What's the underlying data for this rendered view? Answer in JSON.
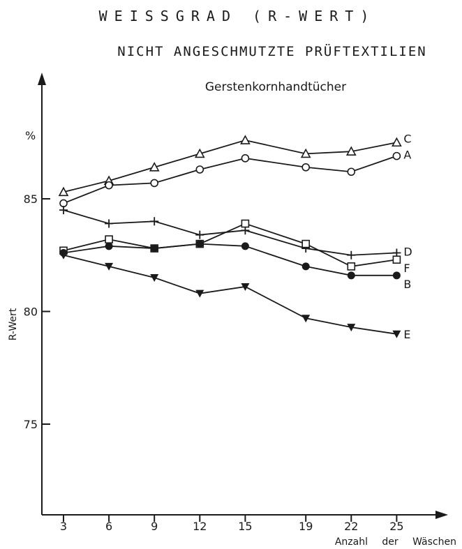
{
  "chart_data": {
    "type": "line",
    "title": "WEISSGRAD (R-WERT)",
    "subtitle": "NICHT ANGESCHMUTZTE PRÜFTEXTILIEN",
    "caption": "Gerstenkornhandtücher",
    "ylabel": "R-Wert",
    "yunit": "%",
    "xlabel": "Anzahl der Wäschen",
    "x": [
      3,
      6,
      9,
      12,
      15,
      19,
      22,
      25
    ],
    "ylim": [
      70,
      90
    ],
    "yticks": [
      75,
      80,
      85
    ],
    "grid": false,
    "series": [
      {
        "name": "C",
        "marker": "triangle-open",
        "values": [
          85.3,
          85.8,
          86.4,
          87.0,
          87.6,
          87.0,
          87.1,
          87.5
        ]
      },
      {
        "name": "A",
        "marker": "circle-open",
        "values": [
          84.8,
          85.6,
          85.7,
          86.3,
          86.8,
          86.4,
          86.2,
          86.9
        ]
      },
      {
        "name": "D",
        "marker": "plus",
        "values": [
          84.5,
          83.9,
          84.0,
          83.4,
          83.6,
          82.8,
          82.5,
          82.6
        ]
      },
      {
        "name": "F",
        "marker": "square-open",
        "values": [
          82.7,
          83.2,
          82.8,
          83.0,
          83.9,
          83.0,
          82.0,
          82.3
        ]
      },
      {
        "name": "B",
        "marker": "circle-filled",
        "values": [
          82.6,
          82.9,
          82.8,
          83.0,
          82.9,
          82.0,
          81.6,
          81.6
        ]
      },
      {
        "name": "E",
        "marker": "triangle-down-filled",
        "values": [
          82.5,
          82.0,
          81.5,
          80.8,
          81.1,
          79.7,
          79.3,
          79.0
        ]
      }
    ]
  }
}
